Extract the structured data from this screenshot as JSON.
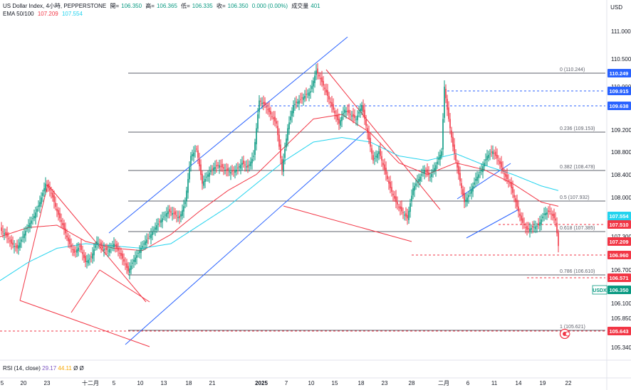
{
  "header": {
    "symbol": "US Dollar Index, 4小時, PEPPERSTONE",
    "open_label": "開=",
    "open": "106.350",
    "high_label": "高=",
    "high": "106.365",
    "low_label": "低=",
    "low": "106.335",
    "close_label": "收=",
    "close": "106.350",
    "change": "0.000 (0.00%)",
    "volume_label": "成交量",
    "volume": "401",
    "ema_label": "EMA 50/100",
    "ema50": "107.209",
    "ema100": "107.554",
    "currency": "USD"
  },
  "rsi": {
    "label": "RSI (14, close)",
    "value": "29.17",
    "ma": "44.11",
    "extra": "Ø Ø"
  },
  "colors": {
    "up": "#089981",
    "down": "#f23645",
    "ema50": "#f23645",
    "ema100": "#22d3ee",
    "channel": "#2962ff",
    "wedge": "#f23645",
    "fib": "#787b86"
  },
  "chart_data": {
    "type": "candlestick",
    "y_ticks": [
      "111.000",
      "110.500",
      "110.000",
      "109.200",
      "108.800",
      "108.400",
      "108.000",
      "107.300",
      "106.700",
      "106.100",
      "105.850",
      "105.340"
    ],
    "x_ticks": [
      "5",
      "20",
      "23",
      "十二月",
      "5",
      "10",
      "13",
      "18",
      "21",
      "2025",
      "7",
      "10",
      "15",
      "18",
      "23",
      "28",
      "二月",
      "6",
      "11",
      "14",
      "19",
      "22"
    ],
    "ylim": [
      105.25,
      111.25
    ],
    "series": [
      {
        "name": "EMA 50",
        "last": 107.209
      },
      {
        "name": "EMA 100",
        "last": 107.554
      }
    ],
    "price_tags": [
      {
        "text": "110.249",
        "value": 110.249,
        "color": "#2962ff"
      },
      {
        "text": "109.915",
        "value": 109.915,
        "color": "#2962ff"
      },
      {
        "text": "109.638",
        "value": 109.638,
        "color": "#2962ff"
      },
      {
        "text": "107.554",
        "value": 107.554,
        "color": "#22d3ee"
      },
      {
        "text": "107.510",
        "value": 107.51,
        "color": "#f23645"
      },
      {
        "text": "107.209",
        "value": 107.209,
        "color": "#f23645"
      },
      {
        "text": "106.960",
        "value": 106.96,
        "color": "#f23645"
      },
      {
        "text": "106.571",
        "value": 106.571,
        "color": "#f23645"
      },
      {
        "text": "106.350",
        "value": 106.35,
        "color": "#089981",
        "prefix": "USDX"
      },
      {
        "text": "105.643",
        "value": 105.643,
        "color": "#f23645"
      }
    ],
    "fib_levels": [
      {
        "label": "0 (110.244)",
        "value": 110.244
      },
      {
        "label": "0.236 (109.153)",
        "value": 109.153
      },
      {
        "label": "0.382 (108.478)",
        "value": 108.478
      },
      {
        "label": "0.5 (107.932)",
        "value": 107.932
      },
      {
        "label": "0.618 (107.385)",
        "value": 107.385
      },
      {
        "label": "0.786 (106.610)",
        "value": 106.61
      },
      {
        "label": "1 (105.621)",
        "value": 105.621
      }
    ],
    "price_path": [
      [
        0,
        106.7
      ],
      [
        4,
        106.6
      ],
      [
        8,
        106.4
      ],
      [
        12,
        106.3
      ],
      [
        16,
        106.55
      ],
      [
        20,
        106.8
      ],
      [
        24,
        107.0
      ],
      [
        28,
        107.3
      ],
      [
        32,
        107.7
      ],
      [
        36,
        107.5
      ],
      [
        40,
        107.1
      ],
      [
        44,
        106.8
      ],
      [
        48,
        106.45
      ],
      [
        52,
        106.2
      ],
      [
        56,
        106.35
      ],
      [
        60,
        106.0
      ],
      [
        64,
        106.1
      ],
      [
        68,
        106.45
      ],
      [
        72,
        106.3
      ],
      [
        76,
        106.25
      ],
      [
        80,
        106.4
      ],
      [
        84,
        106.2
      ],
      [
        88,
        105.95
      ],
      [
        90,
        105.8
      ],
      [
        94,
        106.05
      ],
      [
        98,
        106.25
      ],
      [
        102,
        106.45
      ],
      [
        106,
        106.6
      ],
      [
        110,
        106.8
      ],
      [
        114,
        106.95
      ],
      [
        118,
        107.1
      ],
      [
        122,
        107.05
      ],
      [
        126,
        106.95
      ],
      [
        130,
        107.3
      ],
      [
        134,
        108.3
      ],
      [
        138,
        108.45
      ],
      [
        142,
        107.7
      ],
      [
        146,
        107.9
      ],
      [
        150,
        108.05
      ],
      [
        154,
        108.1
      ],
      [
        158,
        108.0
      ],
      [
        162,
        107.95
      ],
      [
        166,
        108.0
      ],
      [
        170,
        108.15
      ],
      [
        174,
        108.05
      ],
      [
        178,
        108.3
      ],
      [
        182,
        109.5
      ],
      [
        186,
        109.4
      ],
      [
        190,
        109.2
      ],
      [
        194,
        109.0
      ],
      [
        198,
        108.0
      ],
      [
        202,
        108.9
      ],
      [
        206,
        109.4
      ],
      [
        210,
        109.5
      ],
      [
        214,
        109.6
      ],
      [
        218,
        109.7
      ],
      [
        222,
        110.15
      ],
      [
        226,
        109.9
      ],
      [
        230,
        109.6
      ],
      [
        234,
        109.3
      ],
      [
        238,
        109.0
      ],
      [
        242,
        109.3
      ],
      [
        246,
        109.2
      ],
      [
        250,
        109.1
      ],
      [
        254,
        109.4
      ],
      [
        258,
        108.8
      ],
      [
        262,
        108.2
      ],
      [
        266,
        108.4
      ],
      [
        270,
        108.0
      ],
      [
        274,
        107.6
      ],
      [
        278,
        107.3
      ],
      [
        282,
        107.1
      ],
      [
        286,
        106.95
      ],
      [
        290,
        107.6
      ],
      [
        294,
        107.8
      ],
      [
        298,
        108.0
      ],
      [
        302,
        107.85
      ],
      [
        306,
        108.1
      ],
      [
        310,
        108.4
      ],
      [
        312,
        109.8
      ],
      [
        314,
        109.3
      ],
      [
        318,
        108.5
      ],
      [
        322,
        107.9
      ],
      [
        326,
        107.3
      ],
      [
        330,
        107.5
      ],
      [
        334,
        107.8
      ],
      [
        338,
        108.0
      ],
      [
        342,
        108.3
      ],
      [
        346,
        108.4
      ],
      [
        350,
        108.2
      ],
      [
        354,
        107.9
      ],
      [
        358,
        107.7
      ],
      [
        362,
        107.3
      ],
      [
        366,
        106.9
      ],
      [
        370,
        106.7
      ],
      [
        374,
        106.75
      ],
      [
        378,
        106.8
      ],
      [
        382,
        107.05
      ],
      [
        386,
        107.1
      ],
      [
        390,
        106.9
      ],
      [
        392,
        106.35
      ]
    ],
    "ema50_path": [
      [
        0,
        106.55
      ],
      [
        20,
        106.75
      ],
      [
        40,
        106.8
      ],
      [
        60,
        106.45
      ],
      [
        80,
        106.3
      ],
      [
        100,
        106.25
      ],
      [
        120,
        106.6
      ],
      [
        140,
        107.1
      ],
      [
        160,
        107.55
      ],
      [
        180,
        107.9
      ],
      [
        200,
        108.5
      ],
      [
        220,
        109.1
      ],
      [
        240,
        109.2
      ],
      [
        260,
        108.8
      ],
      [
        280,
        108.15
      ],
      [
        300,
        107.9
      ],
      [
        320,
        108.15
      ],
      [
        340,
        108.0
      ],
      [
        360,
        107.7
      ],
      [
        380,
        107.3
      ],
      [
        392,
        107.21
      ]
    ],
    "ema100_path": [
      [
        0,
        105.6
      ],
      [
        20,
        106.0
      ],
      [
        40,
        106.3
      ],
      [
        60,
        106.4
      ],
      [
        80,
        106.35
      ],
      [
        100,
        106.3
      ],
      [
        120,
        106.4
      ],
      [
        140,
        106.8
      ],
      [
        160,
        107.2
      ],
      [
        180,
        107.7
      ],
      [
        200,
        108.2
      ],
      [
        220,
        108.6
      ],
      [
        240,
        108.7
      ],
      [
        260,
        108.6
      ],
      [
        280,
        108.3
      ],
      [
        300,
        108.2
      ],
      [
        320,
        108.35
      ],
      [
        340,
        108.1
      ],
      [
        360,
        107.9
      ],
      [
        380,
        107.65
      ],
      [
        392,
        107.55
      ]
    ]
  }
}
